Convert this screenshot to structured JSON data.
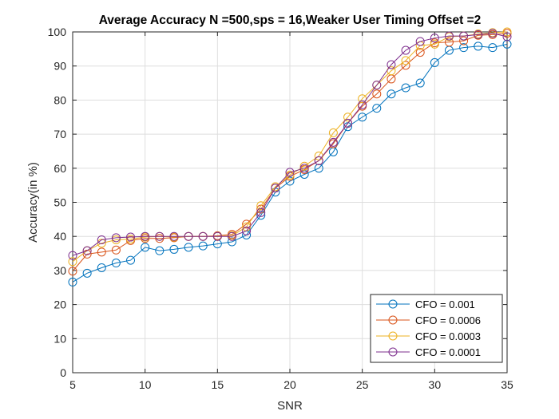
{
  "chart_data": {
    "type": "line",
    "title": "Average Accuracy N =500,sps = 16,Weaker User Timing Offset =2",
    "xlabel": "SNR",
    "ylabel": "Accuracy(in %)",
    "xlim": [
      5,
      35
    ],
    "ylim": [
      0,
      100
    ],
    "xticks": [
      5,
      10,
      15,
      20,
      25,
      30,
      35
    ],
    "yticks": [
      0,
      10,
      20,
      30,
      40,
      50,
      60,
      70,
      80,
      90,
      100
    ],
    "grid": true,
    "legend_position": "bottom-right",
    "marker": "circle",
    "x": [
      5,
      6,
      7,
      8,
      9,
      10,
      11,
      12,
      13,
      14,
      15,
      16,
      17,
      18,
      19,
      20,
      21,
      22,
      23,
      24,
      25,
      26,
      27,
      28,
      29,
      30,
      31,
      32,
      33,
      34,
      35
    ],
    "series": [
      {
        "name": "CFO = 0.001",
        "color": "#0072BD",
        "values": [
          26.6,
          29.2,
          30.8,
          32.2,
          33.0,
          36.8,
          35.8,
          36.2,
          36.8,
          37.2,
          37.8,
          38.4,
          40.4,
          46.2,
          53.0,
          56.2,
          58.2,
          60.0,
          64.8,
          72.2,
          75.0,
          77.6,
          81.8,
          83.6,
          85.0,
          91.0,
          94.6,
          95.4,
          95.8,
          95.4,
          96.4
        ]
      },
      {
        "name": "CFO = 0.0006",
        "color": "#D95319",
        "values": [
          29.8,
          34.8,
          35.4,
          36.0,
          38.8,
          39.4,
          39.4,
          39.6,
          40.0,
          40.0,
          40.2,
          40.6,
          43.6,
          48.0,
          54.2,
          57.6,
          59.6,
          62.2,
          67.2,
          73.2,
          78.2,
          81.8,
          86.2,
          90.2,
          94.0,
          96.8,
          97.0,
          97.4,
          99.0,
          99.2,
          99.6
        ]
      },
      {
        "name": "CFO = 0.0003",
        "color": "#EDB120",
        "values": [
          32.6,
          35.8,
          38.0,
          39.0,
          39.2,
          39.8,
          40.0,
          39.8,
          40.0,
          40.0,
          40.0,
          40.2,
          42.8,
          49.0,
          54.6,
          58.0,
          60.6,
          63.6,
          70.4,
          75.0,
          80.4,
          84.4,
          88.6,
          91.6,
          96.0,
          96.4,
          98.6,
          98.8,
          99.4,
          99.8,
          100.0
        ]
      },
      {
        "name": "CFO = 0.0001",
        "color": "#7E2F8E",
        "values": [
          34.4,
          35.8,
          39.0,
          39.6,
          39.8,
          40.0,
          40.0,
          40.0,
          40.0,
          40.0,
          40.0,
          40.0,
          41.6,
          47.0,
          54.2,
          58.8,
          60.0,
          62.2,
          67.6,
          73.2,
          78.6,
          84.4,
          90.4,
          94.6,
          97.2,
          98.2,
          98.8,
          98.8,
          99.2,
          99.6,
          98.6
        ]
      }
    ]
  }
}
